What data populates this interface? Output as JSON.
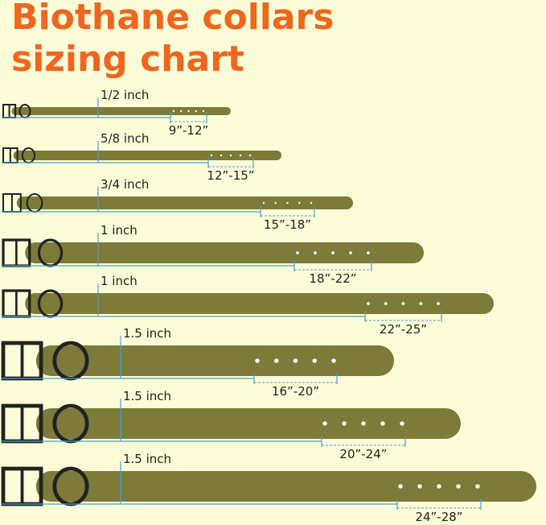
{
  "header": {
    "title_line1": "Biothane collars",
    "title_line2": "sizing chart"
  },
  "collars": [
    {
      "width": "1/2 inch",
      "range": "9”-12”"
    },
    {
      "width": "5/8 inch",
      "range": "12”-15”"
    },
    {
      "width": "3/4 inch",
      "range": "15”-18”"
    },
    {
      "width": "1 inch",
      "range": "18”-22”"
    },
    {
      "width": "1 inch",
      "range": "22”-25”"
    },
    {
      "width": "1.5 inch",
      "range": "16”-20”"
    },
    {
      "width": "1.5 inch",
      "range": "20”-24”"
    },
    {
      "width": "1.5 inch",
      "range": "24”-28”"
    }
  ]
}
